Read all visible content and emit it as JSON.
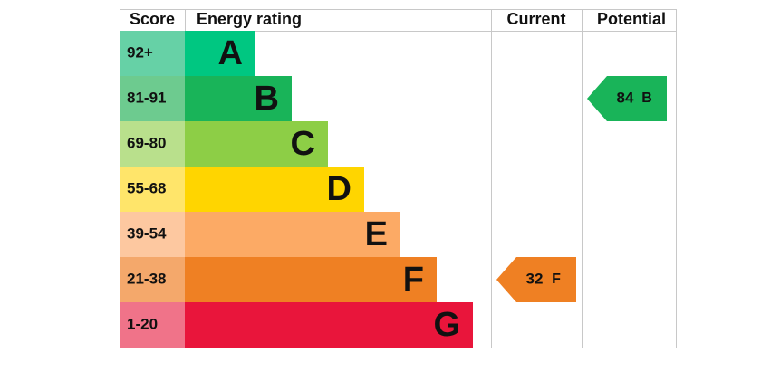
{
  "header": {
    "score": "Score",
    "rating": "Energy rating",
    "current": "Current",
    "potential": "Potential"
  },
  "bands": [
    {
      "score": "92+",
      "letter": "A",
      "color": "#00c781",
      "light": "#66d1a6"
    },
    {
      "score": "81-91",
      "letter": "B",
      "color": "#19b459",
      "light": "#6dcb8f"
    },
    {
      "score": "69-80",
      "letter": "C",
      "color": "#8dce46",
      "light": "#b9e08c"
    },
    {
      "score": "55-68",
      "letter": "D",
      "color": "#ffd500",
      "light": "#ffe56a"
    },
    {
      "score": "39-54",
      "letter": "E",
      "color": "#fcaa65",
      "light": "#fdc8a0"
    },
    {
      "score": "21-38",
      "letter": "F",
      "color": "#ef8023",
      "light": "#f4a86b"
    },
    {
      "score": "1-20",
      "letter": "G",
      "color": "#e9153b",
      "light": "#f07389"
    }
  ],
  "current": {
    "value": 32,
    "letter": "F"
  },
  "potential": {
    "value": 84,
    "letter": "B"
  }
}
